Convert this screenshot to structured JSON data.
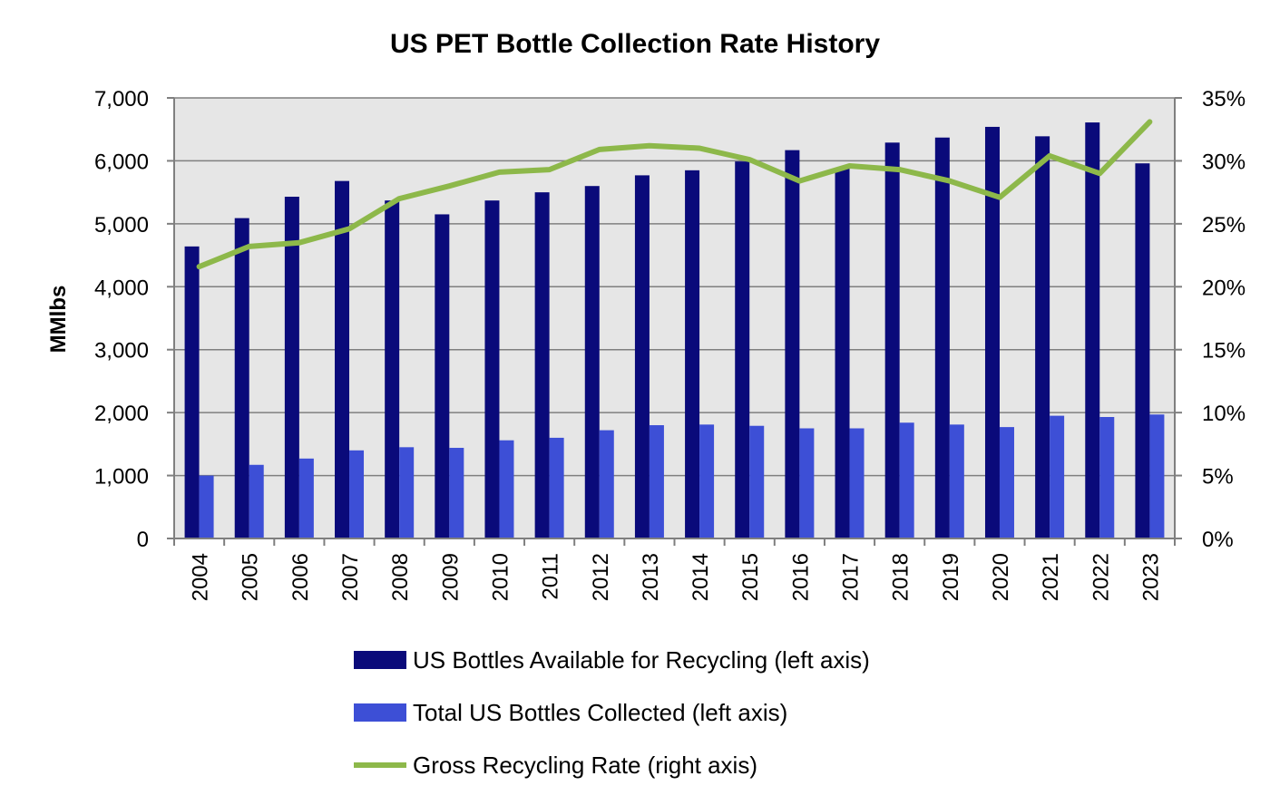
{
  "colors": {
    "available": "#0a0a7a",
    "collected": "#3d4fd6",
    "rate": "#8db84a",
    "plot_bg": "#e6e6e6",
    "gridline": "#7f7f7f",
    "axis": "#7f7f7f"
  },
  "chart_data": {
    "type": "bar",
    "title": "US PET Bottle Collection Rate History",
    "ylabel": "MMlbs",
    "y2label": "",
    "xlabel": "",
    "categories": [
      "2004",
      "2005",
      "2006",
      "2007",
      "2008",
      "2009",
      "2010",
      "2011",
      "2012",
      "2013",
      "2014",
      "2015",
      "2016",
      "2017",
      "2018",
      "2019",
      "2020",
      "2021",
      "2022",
      "2023"
    ],
    "ylim": [
      0,
      7000
    ],
    "y2lim": [
      0,
      0.35
    ],
    "yticks": [
      "0",
      "1,000",
      "2,000",
      "3,000",
      "4,000",
      "5,000",
      "6,000",
      "7,000"
    ],
    "y2ticks": [
      "0%",
      "5%",
      "10%",
      "15%",
      "20%",
      "25%",
      "30%",
      "35%"
    ],
    "grid": true,
    "legend_position": "bottom",
    "series": [
      {
        "name": "US Bottles Available for Recycling (left axis)",
        "type": "bar",
        "axis": "left",
        "values": [
          4640,
          5090,
          5430,
          5680,
          5370,
          5150,
          5370,
          5500,
          5600,
          5770,
          5850,
          5990,
          6170,
          5890,
          6290,
          6370,
          6540,
          6390,
          6610,
          5960
        ]
      },
      {
        "name": "Total US Bottles Collected (left axis)",
        "type": "bar",
        "axis": "left",
        "values": [
          1000,
          1170,
          1270,
          1400,
          1450,
          1440,
          1560,
          1600,
          1720,
          1800,
          1810,
          1790,
          1750,
          1750,
          1840,
          1810,
          1770,
          1950,
          1930,
          1970
        ]
      },
      {
        "name": "Gross Recycling Rate (right axis)",
        "type": "line",
        "axis": "right",
        "values": [
          0.216,
          0.232,
          0.235,
          0.246,
          0.27,
          0.28,
          0.291,
          0.293,
          0.309,
          0.312,
          0.31,
          0.301,
          0.284,
          0.296,
          0.293,
          0.284,
          0.271,
          0.304,
          0.29,
          0.331
        ]
      }
    ]
  }
}
